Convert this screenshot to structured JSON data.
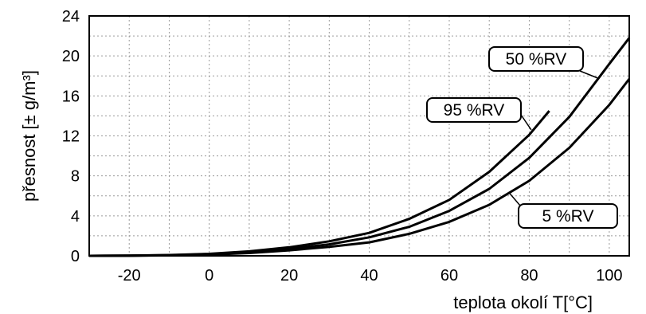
{
  "chart_data": {
    "type": "line",
    "xlabel": "teplota okolí T[°C]",
    "ylabel": "přesnost  [± g/m³]",
    "xlim": [
      -30,
      105
    ],
    "ylim": [
      0,
      24
    ],
    "x_ticks": [
      -20,
      0,
      20,
      40,
      60,
      80,
      100
    ],
    "y_ticks": [
      0,
      4,
      8,
      12,
      16,
      20,
      24
    ],
    "grid": true,
    "series": [
      {
        "name": "95 %RV",
        "x": [
          -30,
          -20,
          -10,
          0,
          10,
          20,
          30,
          40,
          50,
          60,
          70,
          80,
          85
        ],
        "y": [
          0,
          0.02,
          0.08,
          0.2,
          0.45,
          0.85,
          1.45,
          2.3,
          3.7,
          5.6,
          8.4,
          12.1,
          14.5
        ]
      },
      {
        "name": "50 %RV",
        "x": [
          -30,
          -20,
          -10,
          0,
          10,
          20,
          30,
          40,
          50,
          60,
          70,
          80,
          90,
          100,
          105
        ],
        "y": [
          0,
          0.02,
          0.06,
          0.16,
          0.35,
          0.7,
          1.15,
          1.85,
          2.9,
          4.5,
          6.7,
          9.8,
          13.9,
          19.2,
          21.8
        ]
      },
      {
        "name": "5 %RV",
        "x": [
          -30,
          -20,
          -10,
          0,
          10,
          20,
          30,
          40,
          50,
          60,
          70,
          80,
          90,
          100,
          105
        ],
        "y": [
          0,
          0.01,
          0.05,
          0.12,
          0.28,
          0.55,
          0.9,
          1.35,
          2.2,
          3.4,
          5.1,
          7.5,
          10.8,
          15.1,
          17.7
        ]
      }
    ],
    "callouts": [
      {
        "series": 1,
        "label": "50 %RV",
        "point": [
          97,
          17.8
        ]
      },
      {
        "series": 0,
        "label": "95 %RV",
        "point": [
          80.5,
          12.6
        ]
      },
      {
        "series": 2,
        "label": "5 %RV",
        "point": [
          75,
          6.3
        ]
      }
    ]
  }
}
